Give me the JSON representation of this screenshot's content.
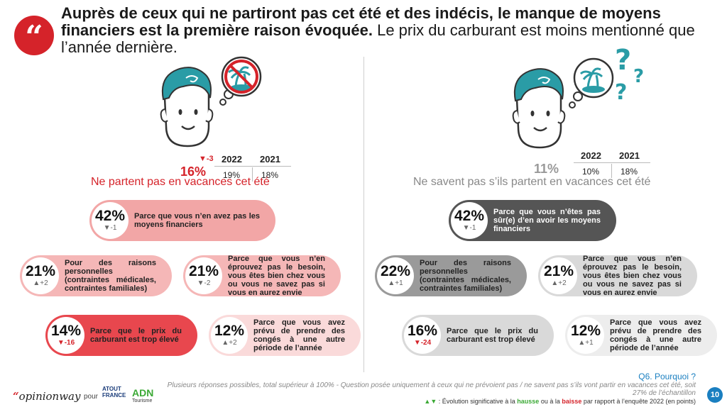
{
  "header": {
    "bold": "Auprès de ceux qui ne partiront pas cet été et des indécis, le manque de moyens financiers est la première raison évoquée.",
    "normal": " Le prix du carburant est moins mentionné que l’année dernière.",
    "quote_mark": "“"
  },
  "left": {
    "pct": "16%",
    "evo": "▼-3",
    "y1": "2022",
    "y2": "2021",
    "v1": "19%",
    "v2": "18%",
    "subtitle": "Ne partent pas en vacances cet été",
    "items": [
      {
        "pct": "42%",
        "evo": "▼-1",
        "text": "Parce que vous n’en avez pas les moyens financiers"
      },
      {
        "pct": "21%",
        "evo": "▲+2",
        "text": "Pour des raisons personnelles (contraintes médicales, contraintes familiales)"
      },
      {
        "pct": "21%",
        "evo": "▼-2",
        "text": "Parce que vous n’en éprouvez pas le besoin, vous êtes bien chez vous ou vous ne savez pas si vous en aurez envie"
      },
      {
        "pct": "14%",
        "evo": "▼-16",
        "text": "Parce que le prix du carburant est trop élevé"
      },
      {
        "pct": "12%",
        "evo": "▲+2",
        "text": "Parce que vous avez prévu de prendre des congés à une autre période de l’année"
      }
    ]
  },
  "right": {
    "pct": "11%",
    "y1": "2022",
    "y2": "2021",
    "v1": "10%",
    "v2": "18%",
    "subtitle": "Ne savent pas s’ils partent en vacances cet été",
    "items": [
      {
        "pct": "42%",
        "evo": "▼-1",
        "text": "Parce que vous n’êtes pas sûr(e) d’en avoir les moyens financiers"
      },
      {
        "pct": "22%",
        "evo": "▲+1",
        "text": "Pour des raisons personnelles (contraintes médicales, contraintes familiales)"
      },
      {
        "pct": "21%",
        "evo": "▲+2",
        "text": "Parce que vous n’en éprouvez pas le besoin, vous êtes bien chez vous ou vous ne savez pas si vous en aurez envie"
      },
      {
        "pct": "16%",
        "evo": "▼-24",
        "text": "Parce que le prix du carburant est trop élevé"
      },
      {
        "pct": "12%",
        "evo": "▲+1",
        "text": "Parce que vous avez prévu de prendre des congés à une autre période de l’année"
      }
    ]
  },
  "footer": {
    "question": "Q6. Pourquoi ?",
    "note": "Plusieurs réponses possibles, total supérieur à 100% - Question posée uniquement à ceux qui ne prévoient pas / ne savent pas s’ils vont partir en vacances cet été, soit 27% de l’échantillon",
    "legend_arrows": "▲▼",
    "legend_a": " : Évolution significative à la ",
    "legend_up": "hausse",
    "legend_b": " ou à la ",
    "legend_dn": "baisse",
    "legend_c": " par rapport à l’enquête 2022 (en points)",
    "brand": "opinionway",
    "brand_quote": "“",
    "pour": "pour",
    "partner1": "ATOUT FRANCE",
    "partner2_a": "AD",
    "partner2_b": "N",
    "partner2_c": "Tourisme",
    "page": "10"
  },
  "colors": {
    "red": "#d5232a",
    "salmon_dark": "#f2a6a6",
    "salmon_mid": "#f5b7b7",
    "salmon_light": "#fadada",
    "grey_dark": "#555555",
    "grey_mid": "#9a9a9a",
    "grey_light": "#d9d9d9",
    "grey_lighter": "#ededed",
    "teal": "#2a9ca6"
  }
}
